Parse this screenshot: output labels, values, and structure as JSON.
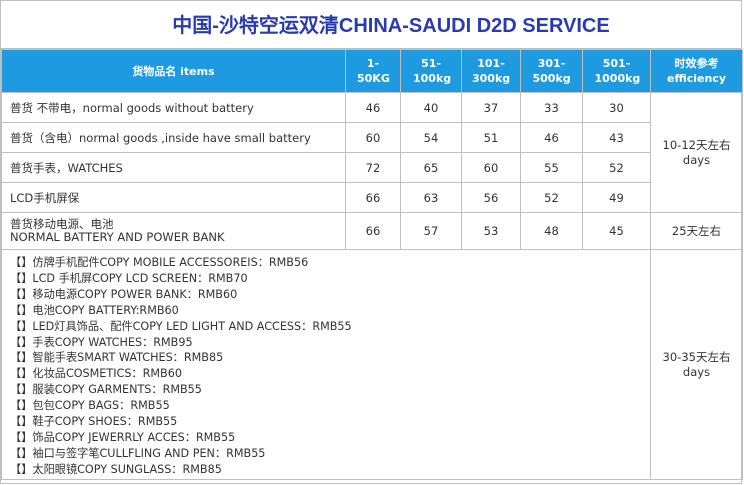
{
  "title": "中国-沙特空运双清CHINA-SAUDI D2D SERVICE",
  "header": {
    "item": "货物品名 items",
    "w1": "1-50KG",
    "w2": "51-100kg",
    "w3": "101-300kg",
    "w4": "301-500kg",
    "w5": "501-1000kg",
    "eta": "时效参考 efficiency"
  },
  "rows": [
    {
      "name": "普货 不带电，normal goods without battery",
      "p1": "46",
      "p2": "40",
      "p3": "37",
      "p4": "33",
      "p5": "30"
    },
    {
      "name": "普货（含电）normal goods ,inside have small battery",
      "p1": "60",
      "p2": "54",
      "p3": "51",
      "p4": "46",
      "p5": "43"
    },
    {
      "name": "普货手表，WATCHES",
      "p1": "72",
      "p2": "65",
      "p3": "60",
      "p4": "55",
      "p5": "52"
    },
    {
      "name": "LCD手机屏保",
      "p1": "66",
      "p2": "63",
      "p3": "56",
      "p4": "52",
      "p5": "49"
    },
    {
      "name_line1": "普货移动电源、电池",
      "name_line2": "NORMAL BATTERY AND POWER BANK",
      "p1": "66",
      "p2": "57",
      "p3": "53",
      "p4": "48",
      "p5": "45"
    }
  ],
  "eta": {
    "group1": "10-12天左右 days",
    "group2": "25天左右",
    "group3": "30-35天左右 days"
  },
  "copy_items": [
    "【】仿牌手机配件COPY MOBILE ACCESSOREIS：RMB56",
    "【】LCD 手机屏COPY LCD SCREEN：RMB70",
    "【】移动电源COPY POWER BANK：RMB60",
    "【】电池COPY BATTERY:RMB60",
    "【】LED灯具饰品、配件COPY LED LIGHT AND ACCESS：RMB55",
    "【】手表COPY WATCHES：RMB95",
    "【】智能手表SMART WATCHES：RMB85",
    "【】化妆品COSMETICS：RMB60",
    "【】服装COPY GARMENTS：RMB55",
    "【】包包COPY BAGS：RMB55",
    "【】鞋子COPY SHOES：RMB55",
    "【】饰品COPY JEWERRLY ACCES：RMB55",
    "【】袖口与签字笔CULLFLING AND PEN：RMB55",
    "【】太阳眼镜COPY SUNGLASS：RMB85"
  ],
  "colors": {
    "header_bg": "#1e9be0",
    "title": "#2a3bb0"
  }
}
